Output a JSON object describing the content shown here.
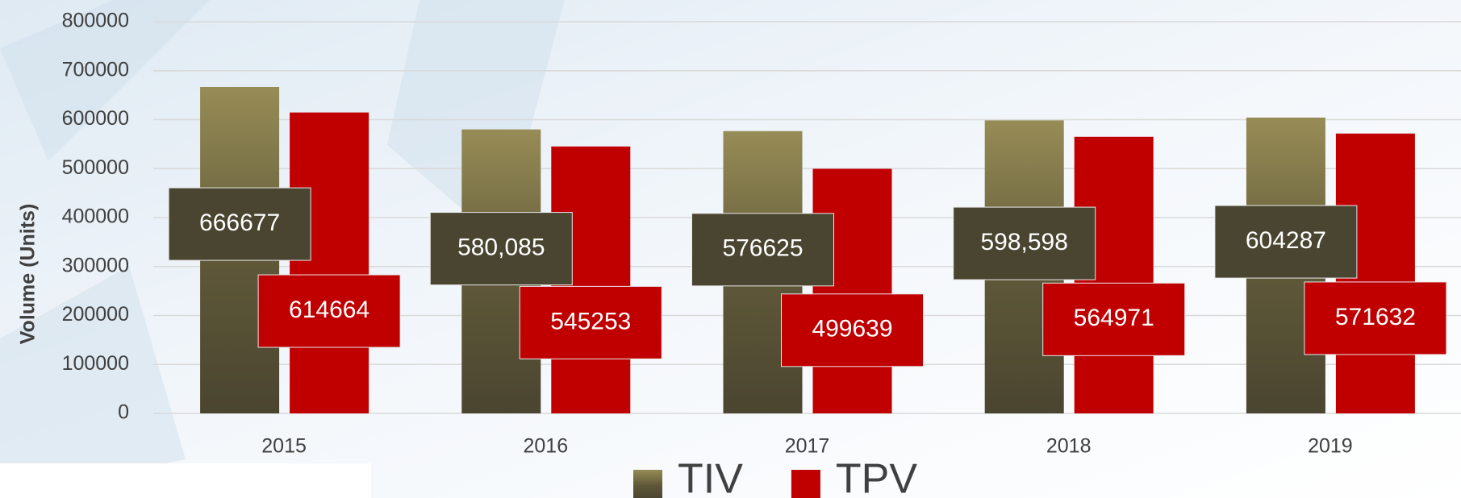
{
  "chart_data": {
    "type": "bar",
    "categories": [
      "2015",
      "2016",
      "2017",
      "2018",
      "2019"
    ],
    "y_label": "Volume (Units)",
    "series": [
      {
        "name": "TIV",
        "color": "#4a4530",
        "values": [
          666677,
          580085,
          576625,
          598598,
          604287
        ],
        "value_labels": [
          "666677",
          "580,085",
          "576625",
          "598,598",
          "604287"
        ]
      },
      {
        "name": "TPV",
        "color": "#c00000",
        "values": [
          614664,
          545253,
          499639,
          564971,
          571632
        ],
        "value_labels": [
          "614664",
          "545253",
          "499639",
          "564971",
          "571632"
        ]
      }
    ],
    "ylim": [
      0,
      800000
    ],
    "yticks": [
      0,
      100000,
      200000,
      300000,
      400000,
      500000,
      600000,
      700000,
      800000
    ],
    "grid": true,
    "legend": "bottom"
  }
}
